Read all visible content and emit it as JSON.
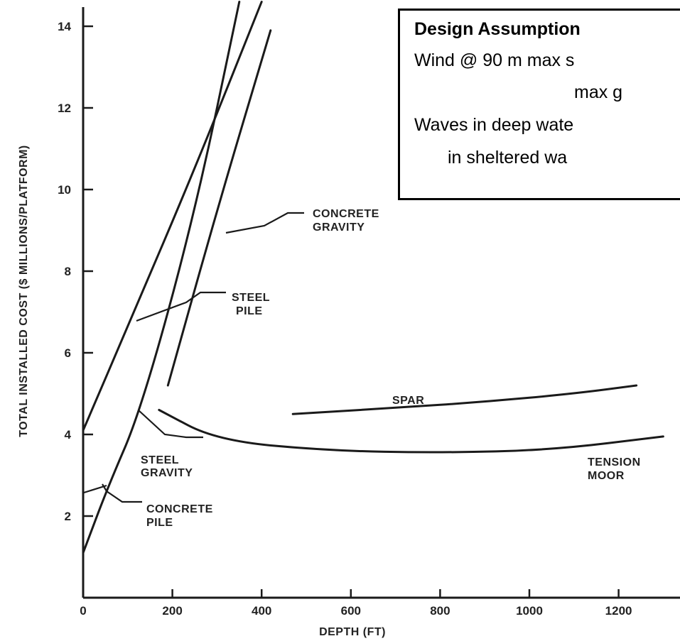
{
  "chart_data": {
    "type": "line",
    "xlabel": "DEPTH (FT)",
    "ylabel": "TOTAL INSTALLED COST ($ MILLIONS/PLATFORM)",
    "xlim": [
      0,
      1300
    ],
    "ylim": [
      0,
      14.5
    ],
    "x_ticks": [
      0,
      200,
      400,
      600,
      800,
      1000,
      1200
    ],
    "x_tick_labels": [
      "0",
      "200",
      "400",
      "600",
      "800",
      "1000",
      "1200"
    ],
    "y_ticks": [
      2,
      4,
      6,
      8,
      10,
      12,
      14
    ],
    "y_tick_labels": [
      "2",
      "4",
      "6",
      "8",
      "10",
      "12",
      "14"
    ],
    "grid": false,
    "series": [
      {
        "name": "STEEL PILE",
        "x": [
          0,
          110,
          250,
          400
        ],
        "y": [
          4.1,
          6.9,
          10.5,
          14.6
        ]
      },
      {
        "name": "CONCRETE PILE",
        "x": [
          0,
          55,
          130,
          250,
          350
        ],
        "y": [
          1.1,
          2.7,
          4.6,
          9.4,
          14.6
        ]
      },
      {
        "name": "CONCRETE GRAVITY",
        "x": [
          190,
          300,
          420
        ],
        "y": [
          5.2,
          9.5,
          13.9
        ]
      },
      {
        "name": "STEEL GRAVITY",
        "x": [
          170,
          300,
          550,
          800,
          1050,
          1300
        ],
        "y": [
          4.6,
          3.85,
          3.6,
          3.55,
          3.62,
          3.95
        ]
      },
      {
        "name": "SPAR",
        "x": [
          470,
          700,
          900,
          1100,
          1240
        ],
        "y": [
          4.5,
          4.65,
          4.8,
          5.0,
          5.2
        ]
      },
      {
        "name": "TENSION MOOR",
        "x": [],
        "y": []
      }
    ],
    "annotations": [
      {
        "id": "concrete-gravity",
        "lines": [
          "CONCRETE",
          "GRAVITY"
        ]
      },
      {
        "id": "steel-pile",
        "lines": [
          "STEEL",
          "PILE"
        ]
      },
      {
        "id": "spar",
        "lines": [
          "SPAR"
        ]
      },
      {
        "id": "steel-gravity",
        "lines": [
          "STEEL",
          "GRAVITY"
        ]
      },
      {
        "id": "tension-moor",
        "lines": [
          "TENSION",
          "MOOR"
        ]
      },
      {
        "id": "concrete-pile",
        "lines": [
          "CONCRETE",
          "PILE"
        ]
      }
    ]
  },
  "assumptions": {
    "title": "Design Assumption",
    "lines": [
      "Wind @ 90 m max s",
      "max g",
      "Waves in deep wate",
      "in sheltered wa"
    ]
  }
}
